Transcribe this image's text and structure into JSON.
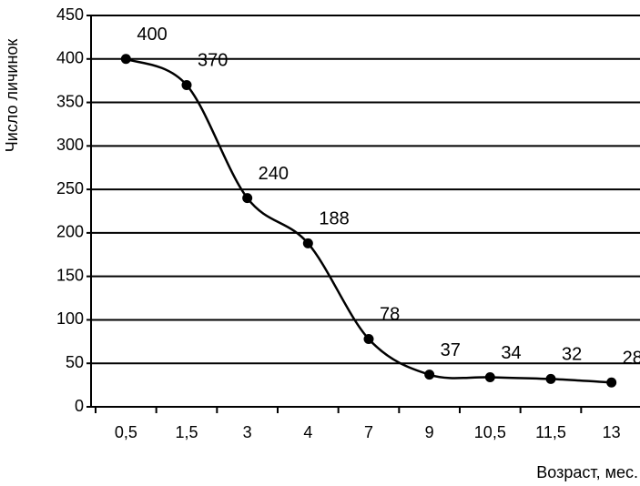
{
  "chart_data": {
    "type": "line",
    "x_label": "Возраст, мес.",
    "y_label": "Число личинок",
    "categories": [
      "0,5",
      "1,5",
      "3",
      "4",
      "7",
      "9",
      "10,5",
      "11,5",
      "13"
    ],
    "values": [
      400,
      370,
      240,
      188,
      78,
      37,
      34,
      32,
      28
    ],
    "color": "#000000",
    "ylim": [
      0,
      450
    ],
    "yticks": [
      0,
      50,
      100,
      150,
      200,
      250,
      300,
      350,
      400,
      450
    ],
    "grid": true
  }
}
